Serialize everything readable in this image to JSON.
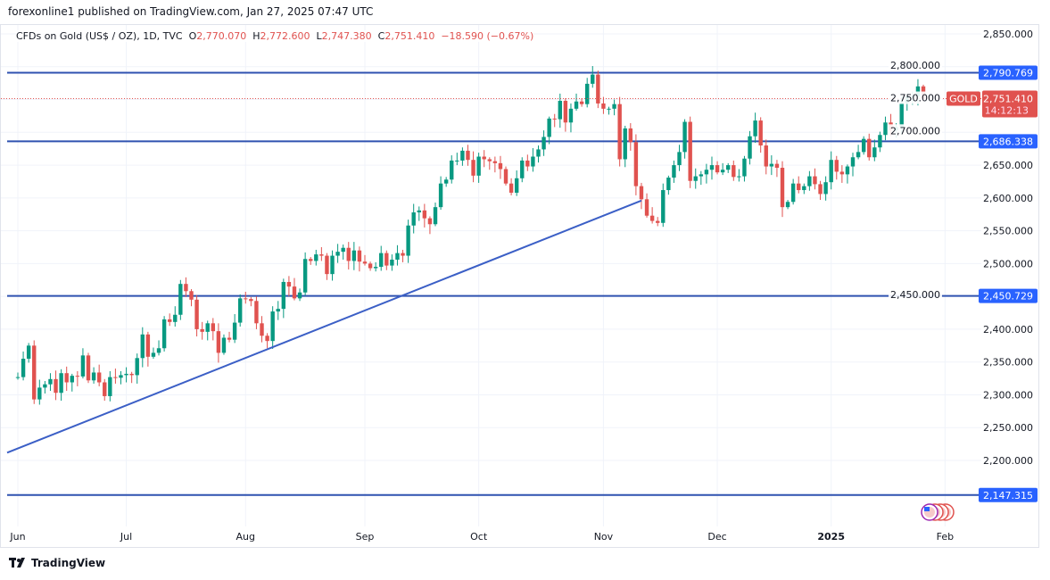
{
  "header": {
    "publish_line": "forexonline1 published on TradingView.com, Jan 27, 2025 07:47 UTC",
    "symbol": "CFDs on Gold (US$ / OZ), 1D, TVC",
    "o_label": "O",
    "o": "2,770.070",
    "h_label": "H",
    "h": "2,772.600",
    "l_label": "L",
    "l": "2,747.380",
    "c_label": "C",
    "c": "2,751.410",
    "change": "−18.590 (−0.67%)"
  },
  "footer": {
    "brand": "TradingView",
    "logo_icon": "tradingview-logo-icon"
  },
  "colors": {
    "up": "#089981",
    "down": "#e0524f",
    "level_line": "#2f52b0",
    "level_label": "#2962ff",
    "price_label": "#e0524f",
    "grid": "#f0f3fa"
  },
  "chart_data": {
    "type": "candlestick",
    "title": "",
    "ylim": [
      2160,
      2870
    ],
    "grid": true,
    "y_ticks": [
      2850,
      2800,
      2750,
      2700,
      2650,
      2600,
      2550,
      2500,
      2450,
      2400,
      2350,
      2300,
      2250,
      2200
    ],
    "y_tick_labels": [
      "2,850.000",
      "2,800.000",
      "2,750.000",
      "2,700.000",
      "2,650.000",
      "2,600.000",
      "2,550.000",
      "2,500.000",
      "2,450.000",
      "2,400.000",
      "2,350.000",
      "2,300.000",
      "2,250.000",
      "2,200.000"
    ],
    "month_ticks": [
      {
        "label": "Jun",
        "index": 1,
        "bold": false
      },
      {
        "label": "Jul",
        "index": 21,
        "bold": false
      },
      {
        "label": "Aug",
        "index": 43,
        "bold": false
      },
      {
        "label": "Sep",
        "index": 65,
        "bold": false
      },
      {
        "label": "Oct",
        "index": 86,
        "bold": false
      },
      {
        "label": "Nov",
        "index": 109,
        "bold": false
      },
      {
        "label": "Dec",
        "index": 130,
        "bold": false
      },
      {
        "label": "2025",
        "index": 151,
        "bold": true
      },
      {
        "label": "Feb",
        "index": 172,
        "bold": false
      }
    ],
    "closes": [
      2327,
      2327,
      2355,
      2375,
      2293,
      2311,
      2316,
      2324,
      2303,
      2333,
      2319,
      2329,
      2328,
      2360,
      2322,
      2334,
      2319,
      2298,
      2327,
      2326,
      2330,
      2332,
      2330,
      2356,
      2392,
      2358,
      2364,
      2371,
      2415,
      2411,
      2422,
      2469,
      2458,
      2445,
      2400,
      2396,
      2409,
      2397,
      2364,
      2387,
      2384,
      2410,
      2447,
      2446,
      2443,
      2409,
      2390,
      2382,
      2427,
      2431,
      2472,
      2465,
      2447,
      2456,
      2507,
      2504,
      2514,
      2512,
      2484,
      2512,
      2518,
      2524,
      2504,
      2520,
      2503,
      2500,
      2493,
      2495,
      2516,
      2497,
      2506,
      2516,
      2512,
      2558,
      2578,
      2581,
      2569,
      2560,
      2586,
      2622,
      2628,
      2657,
      2657,
      2672,
      2658,
      2634,
      2663,
      2659,
      2656,
      2653,
      2644,
      2622,
      2608,
      2630,
      2657,
      2648,
      2663,
      2674,
      2693,
      2721,
      2720,
      2748,
      2715,
      2736,
      2747,
      2743,
      2774,
      2788,
      2744,
      2736,
      2736,
      2743,
      2659,
      2706,
      2685,
      2618,
      2598,
      2573,
      2565,
      2562,
      2612,
      2631,
      2650,
      2670,
      2716,
      2626,
      2633,
      2636,
      2643,
      2650,
      2639,
      2643,
      2650,
      2632,
      2633,
      2660,
      2694,
      2718,
      2680,
      2648,
      2652,
      2646,
      2586,
      2594,
      2622,
      2612,
      2618,
      2633,
      2621,
      2606,
      2624,
      2658,
      2640,
      2636,
      2648,
      2662,
      2670,
      2690,
      2662,
      2677,
      2696,
      2715,
      2703,
      2708,
      2745,
      2755,
      2755,
      2770,
      2751.41
    ],
    "last_candle": {
      "open": 2770.07,
      "high": 2772.6,
      "low": 2747.38,
      "close": 2751.41
    },
    "horizontal_levels": [
      {
        "value": 2790.769,
        "label": "2,790.769"
      },
      {
        "value": 2686.338,
        "label": "2,686.338"
      },
      {
        "value": 2450.729,
        "label": "2,450.729"
      },
      {
        "value": 2147.315,
        "label": "2,147.315"
      }
    ],
    "trendline": {
      "start": {
        "index": 0,
        "price": 2215
      },
      "end": {
        "index": 116,
        "price": 2596
      }
    },
    "current_price": {
      "symbol": "GOLD",
      "value": "2,751.410",
      "countdown": "14:12:13",
      "price": 2751.41
    },
    "event_icon": "us-flag-economic-events-icon"
  }
}
